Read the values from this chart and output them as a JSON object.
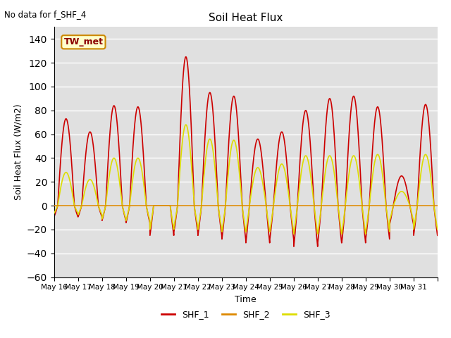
{
  "title": "Soil Heat Flux",
  "no_data_text": "No data for f_SHF_4",
  "ylabel": "Soil Heat Flux (W/m2)",
  "xlabel": "Time",
  "legend_location_text": "TW_met",
  "ylim": [
    -60,
    150
  ],
  "yticks": [
    -60,
    -40,
    -20,
    0,
    20,
    40,
    60,
    80,
    100,
    120,
    140
  ],
  "plot_bg_color": "#e0e0e0",
  "shf1_color": "#cc0000",
  "shf2_color": "#dd8800",
  "shf3_color": "#dddd00",
  "line_width": 1.2,
  "n_days": 16,
  "start_day": 16,
  "shf1_day_peaks": [
    73,
    62,
    84,
    83,
    0,
    125,
    95,
    92,
    56,
    62,
    80,
    90,
    92,
    83,
    25,
    85
  ],
  "shf1_day_troughs": [
    -15,
    -15,
    -20,
    -23,
    -40,
    -35,
    -40,
    -45,
    -50,
    -45,
    -55,
    -50,
    -50,
    -45,
    -25,
    -40
  ],
  "shf3_day_peaks": [
    28,
    22,
    40,
    40,
    0,
    68,
    56,
    55,
    32,
    35,
    42,
    42,
    42,
    43,
    12,
    43
  ],
  "shf3_day_troughs": [
    -10,
    -12,
    -18,
    -20,
    -32,
    -28,
    -32,
    -35,
    -35,
    -35,
    -38,
    -38,
    -38,
    -35,
    -20,
    -32
  ]
}
